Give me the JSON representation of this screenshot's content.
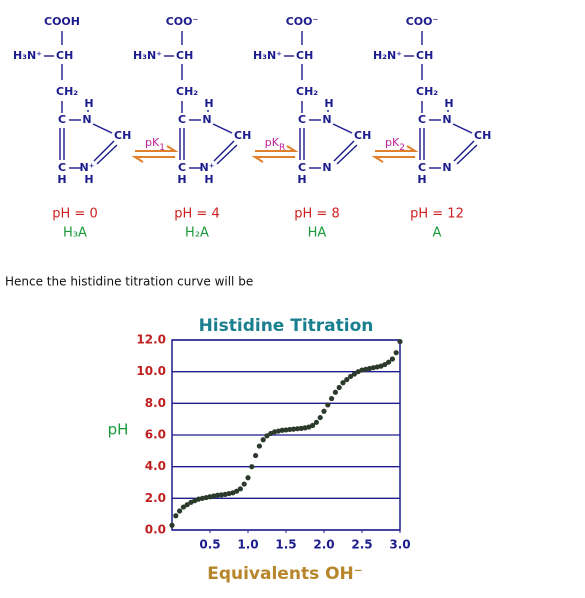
{
  "structures": [
    {
      "carboxyl": "COOH",
      "amine": "H₃N⁺",
      "alpha": "CH",
      "beta": "CH₂",
      "c4": "C",
      "n3": "N",
      "n3h": "H",
      "c2": "CH",
      "c5": "C",
      "n1": "N⁺",
      "c5h": "H",
      "n1h": "H",
      "ph": "pH = 0",
      "species": "H₃A"
    },
    {
      "carboxyl": "COO⁻",
      "amine": "H₃N⁺",
      "alpha": "CH",
      "beta": "CH₂",
      "c4": "C",
      "n3": "N",
      "n3h": "H",
      "c2": "CH",
      "c5": "C",
      "n1": "N⁺",
      "c5h": "H",
      "n1h": "H",
      "ph": "pH = 4",
      "species": "H₂A"
    },
    {
      "carboxyl": "COO⁻",
      "amine": "H₃N⁺",
      "alpha": "CH",
      "beta": "CH₂",
      "c4": "C",
      "n3": "N",
      "n3h": "H",
      "c2": "CH",
      "c5": "C",
      "n1": "N",
      "c5h": "H",
      "ph": "pH = 8",
      "species": "HA"
    },
    {
      "carboxyl": "COO⁻",
      "amine": "H₂N⁺",
      "alpha": "CH",
      "beta": "CH₂",
      "c4": "C",
      "n3": "N",
      "n3h": "H",
      "c2": "CH",
      "c5": "C",
      "n1": "N",
      "c5h": "H",
      "ph": "pH = 12",
      "species": "A"
    }
  ],
  "equilibria": [
    {
      "main": "pK",
      "sub": "1"
    },
    {
      "main": "pK",
      "sub": "R"
    },
    {
      "main": "pK",
      "sub": "2"
    }
  ],
  "caption": "Hence the histidine titration curve will be",
  "chart_data": {
    "type": "scatter",
    "title": "Histidine Titration",
    "xlabel": "Equivalents OH⁻",
    "ylabel": "pH",
    "color": "#2b3a2b",
    "grid": true,
    "xlim": [
      0,
      3
    ],
    "ylim": [
      0,
      12
    ],
    "xticks": [
      0.5,
      {
        "value": 1,
        "label": "1.0"
      },
      1.5,
      {
        "value": 2,
        "label": "2.0"
      },
      2.5,
      {
        "value": 3,
        "label": "3.0"
      }
    ],
    "yticks": [
      {
        "value": 0,
        "label": "0.0"
      },
      {
        "value": 2,
        "label": "2.0"
      },
      {
        "value": 4,
        "label": "4.0"
      },
      {
        "value": 6,
        "label": "6.0"
      },
      {
        "value": 8,
        "label": "8.0"
      },
      {
        "value": 10,
        "label": "10.0"
      },
      {
        "value": 12,
        "label": "12.0"
      }
    ],
    "x": [
      0,
      0.05,
      0.1,
      0.15,
      0.2,
      0.25,
      0.3,
      0.35,
      0.4,
      0.45,
      0.5,
      0.55,
      0.6,
      0.65,
      0.7,
      0.75,
      0.8,
      0.85,
      0.9,
      0.95,
      1,
      1.05,
      1.1,
      1.15,
      1.2,
      1.25,
      1.3,
      1.35,
      1.4,
      1.45,
      1.5,
      1.55,
      1.6,
      1.65,
      1.7,
      1.75,
      1.8,
      1.85,
      1.9,
      1.95,
      2,
      2.05,
      2.1,
      2.15,
      2.2,
      2.25,
      2.3,
      2.35,
      2.4,
      2.45,
      2.5,
      2.55,
      2.6,
      2.65,
      2.7,
      2.75,
      2.8,
      2.85,
      2.9,
      2.95,
      3
    ],
    "values": [
      0.3,
      0.9,
      1.2,
      1.45,
      1.6,
      1.75,
      1.85,
      1.95,
      2.0,
      2.05,
      2.1,
      2.15,
      2.2,
      2.22,
      2.25,
      2.3,
      2.35,
      2.45,
      2.6,
      2.9,
      3.3,
      4.0,
      4.7,
      5.3,
      5.7,
      5.95,
      6.1,
      6.2,
      6.25,
      6.3,
      6.32,
      6.35,
      6.37,
      6.4,
      6.42,
      6.45,
      6.5,
      6.6,
      6.8,
      7.1,
      7.5,
      7.9,
      8.3,
      8.7,
      9.0,
      9.3,
      9.5,
      9.7,
      9.85,
      10.0,
      10.1,
      10.15,
      10.2,
      10.25,
      10.3,
      10.35,
      10.45,
      10.6,
      10.8,
      11.2,
      11.9
    ]
  }
}
